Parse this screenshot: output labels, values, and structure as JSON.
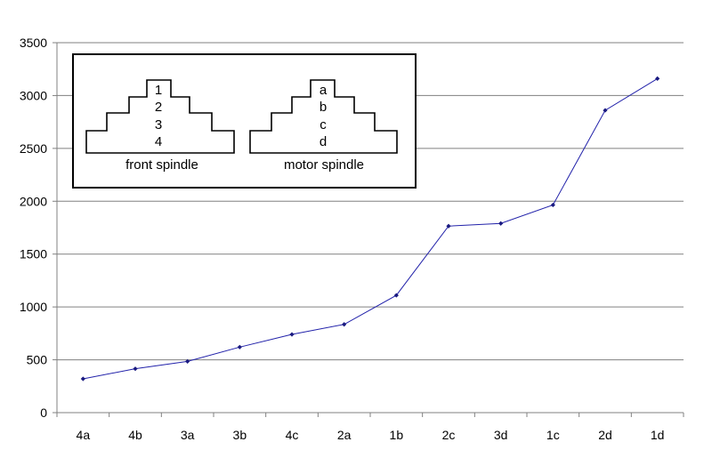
{
  "chart_data": {
    "type": "line",
    "categories": [
      "4a",
      "4b",
      "3a",
      "3b",
      "4c",
      "2a",
      "1b",
      "2c",
      "3d",
      "1c",
      "2d",
      "1d"
    ],
    "series": [
      {
        "values": [
          320,
          415,
          485,
          620,
          740,
          835,
          1110,
          1765,
          1790,
          1965,
          2860,
          3160
        ]
      }
    ],
    "ylim": [
      0,
      3500
    ],
    "yticks": [
      "0",
      "500",
      "1000",
      "1500",
      "2000",
      "2500",
      "3000",
      "3500"
    ],
    "grid": "horizontal",
    "line_color": "#2222aa",
    "marker_color": "#1a1a80"
  },
  "inset": {
    "front_spindle": {
      "steps": [
        "1",
        "2",
        "3",
        "4"
      ],
      "label": "front spindle"
    },
    "motor_spindle": {
      "steps": [
        "a",
        "b",
        "c",
        "d"
      ],
      "label": "motor spindle"
    }
  }
}
